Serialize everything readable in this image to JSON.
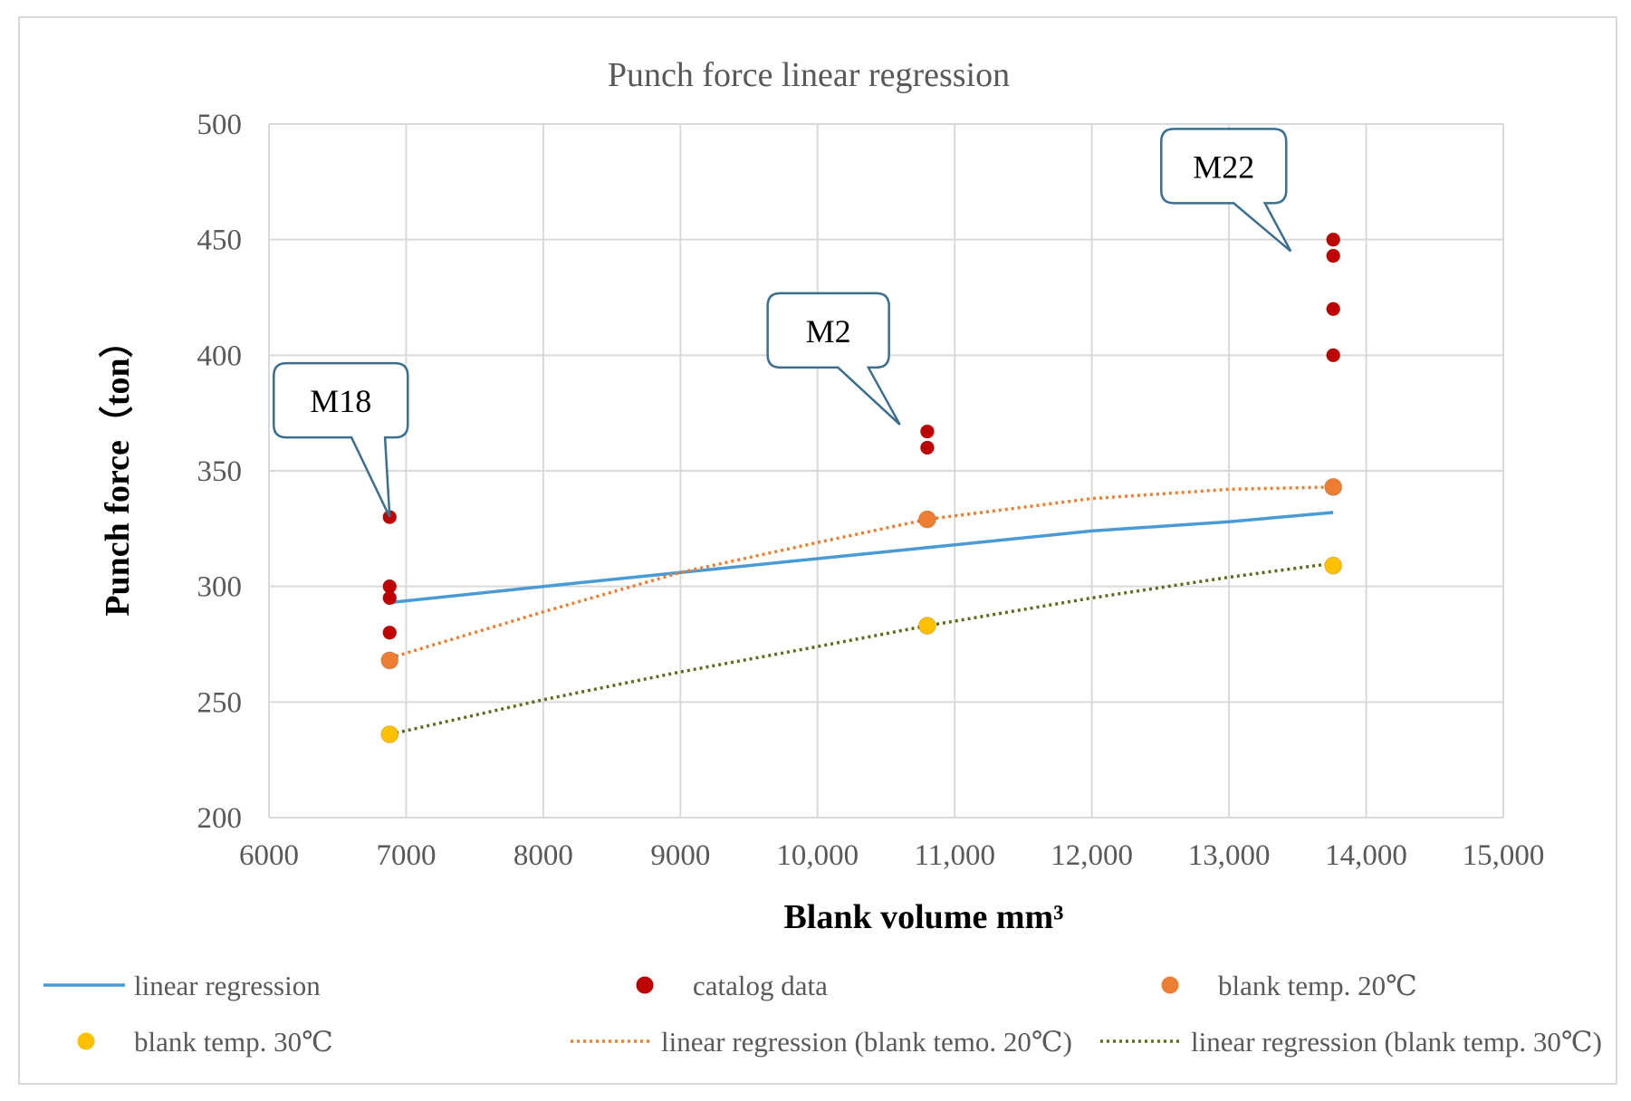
{
  "chart_data": {
    "type": "scatter",
    "title": "Punch force linear regression",
    "xlabel": "Blank volume mm³",
    "ylabel": "Punch force（ton）",
    "xlim": [
      6000,
      15000
    ],
    "ylim": [
      200,
      500
    ],
    "x_ticks": [
      6000,
      7000,
      8000,
      9000,
      10000,
      11000,
      12000,
      13000,
      14000,
      15000
    ],
    "x_tick_labels": [
      "6000",
      "7000",
      "8000",
      "9000",
      "10,000",
      "11,000",
      "12,000",
      "13,000",
      "14,000",
      "15,000"
    ],
    "y_ticks": [
      200,
      250,
      300,
      350,
      400,
      450,
      500
    ],
    "y_tick_labels": [
      "200",
      "250",
      "300",
      "350",
      "400",
      "450",
      "500"
    ],
    "grid": true,
    "series": [
      {
        "name": "catalog data",
        "kind": "points",
        "color": "#c00000",
        "points": [
          [
            6880,
            330
          ],
          [
            6880,
            300
          ],
          [
            6880,
            295
          ],
          [
            6880,
            280
          ],
          [
            10800,
            367
          ],
          [
            10800,
            360
          ],
          [
            13760,
            450
          ],
          [
            13760,
            443
          ],
          [
            13760,
            420
          ],
          [
            13760,
            400
          ]
        ]
      },
      {
        "name": "blank temp. 20℃",
        "kind": "points",
        "color": "#ed7d31",
        "points": [
          [
            6880,
            268
          ],
          [
            10800,
            329
          ],
          [
            13760,
            343
          ]
        ]
      },
      {
        "name": "blank temp. 30℃",
        "kind": "points",
        "color": "#ffc000",
        "points": [
          [
            6880,
            236
          ],
          [
            10800,
            283
          ],
          [
            13760,
            309
          ]
        ]
      },
      {
        "name": "linear regression",
        "kind": "line",
        "style": "solid",
        "color": "#4a9bd5",
        "points": [
          [
            6880,
            293
          ],
          [
            8000,
            300
          ],
          [
            9000,
            306
          ],
          [
            10000,
            312
          ],
          [
            11000,
            318
          ],
          [
            12000,
            324
          ],
          [
            13000,
            328
          ],
          [
            13760,
            332
          ]
        ]
      },
      {
        "name": "linear regression (blank temo. 20℃)",
        "kind": "line",
        "style": "dotted",
        "color": "#ed7d31",
        "points": [
          [
            6880,
            269
          ],
          [
            8000,
            289
          ],
          [
            9000,
            306
          ],
          [
            10000,
            319
          ],
          [
            10800,
            329
          ],
          [
            12000,
            338
          ],
          [
            13000,
            342
          ],
          [
            13760,
            343
          ]
        ]
      },
      {
        "name": "linear regression (blank temp. 30℃)",
        "kind": "line",
        "style": "dotted",
        "color": "#5f6b1c",
        "points": [
          [
            6880,
            236
          ],
          [
            8000,
            251
          ],
          [
            9000,
            263
          ],
          [
            10000,
            274
          ],
          [
            10800,
            283
          ],
          [
            12000,
            295
          ],
          [
            13000,
            304
          ],
          [
            13760,
            310
          ]
        ]
      }
    ],
    "annotations": [
      {
        "text": "M18",
        "x": 6880,
        "y": 330
      },
      {
        "text": "M2",
        "x": 10600,
        "y": 370
      },
      {
        "text": "M22",
        "x": 13450,
        "y": 445
      }
    ]
  },
  "legend": [
    {
      "label": "linear regression",
      "marker": "line",
      "color": "#4a9bd5"
    },
    {
      "label": "catalog data",
      "marker": "dot",
      "color": "#c00000"
    },
    {
      "label": "blank temp. 20℃",
      "marker": "dot",
      "color": "#ed7d31"
    },
    {
      "label": "blank temp. 30℃",
      "marker": "dot",
      "color": "#ffc000"
    },
    {
      "label": "linear regression (blank temo. 20℃)",
      "marker": "dotted",
      "color": "#ed7d31"
    },
    {
      "label": "linear regression (blank temp. 30℃)",
      "marker": "dotted",
      "color": "#5f6b1c"
    }
  ]
}
